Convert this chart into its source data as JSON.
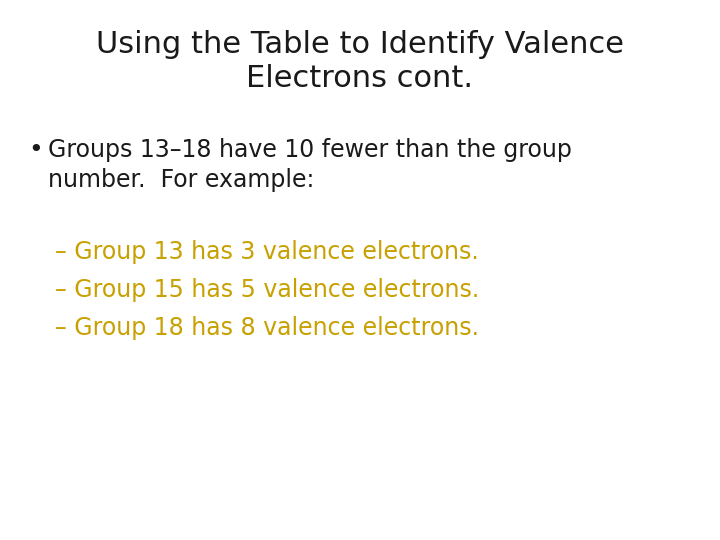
{
  "title_line1": "Using the Table to Identify Valence",
  "title_line2": "Electrons cont.",
  "bullet_text_line1": "Groups 13–18 have 10 fewer than the group",
  "bullet_text_line2": "number.  For example:",
  "sub_bullets": [
    "– Group 13 has 3 valence electrons.",
    "– Group 15 has 5 valence electrons.",
    "– Group 18 has 8 valence electrons."
  ],
  "background_color": "#ffffff",
  "title_color": "#1a1a1a",
  "bullet_color": "#1a1a1a",
  "sub_bullet_color": "#c8a000",
  "title_fontsize": 22,
  "bullet_fontsize": 17,
  "sub_bullet_fontsize": 17,
  "font_family": "DejaVu Sans"
}
